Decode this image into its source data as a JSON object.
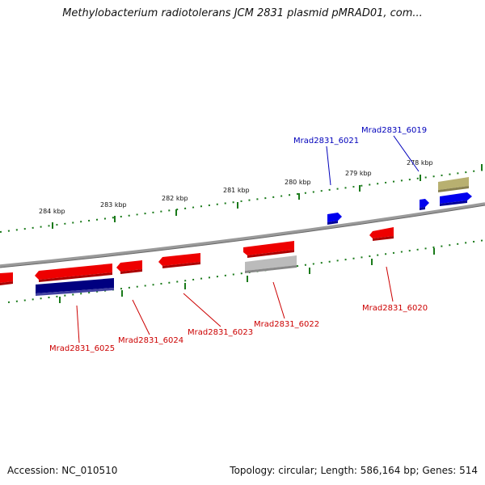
{
  "header": {
    "title": "Methylobacterium radiotolerans JCM 2831 plasmid pMRAD01, com..."
  },
  "footer": {
    "accession": "Accession: NC_010510",
    "summary": "Topology: circular; Length: 586,164 bp; Genes: 514"
  },
  "colors": {
    "forward_gene": "#ee0000",
    "reverse_gene": "#0000ee",
    "navy_gene": "#000080",
    "gray_gene": "#aaaaaa",
    "olive_gene": "#b8b070",
    "backbone": "#888888",
    "tick": "#1a7a1a",
    "label_red": "#cc0000",
    "label_blue": "#0000bb"
  },
  "ruler": {
    "ticks": [
      "284 kbp",
      "283 kbp",
      "282 kbp",
      "281 kbp",
      "280 kbp",
      "279 kbp",
      "278 kbp"
    ]
  },
  "gene_labels": [
    {
      "id": "Mrad2831_6019",
      "strand": "reverse"
    },
    {
      "id": "Mrad2831_6021",
      "strand": "reverse"
    },
    {
      "id": "Mrad2831_6020",
      "strand": "forward"
    },
    {
      "id": "Mrad2831_6022",
      "strand": "forward"
    },
    {
      "id": "Mrad2831_6023",
      "strand": "forward"
    },
    {
      "id": "Mrad2831_6024",
      "strand": "forward"
    },
    {
      "id": "Mrad2831_6025",
      "strand": "forward"
    }
  ]
}
